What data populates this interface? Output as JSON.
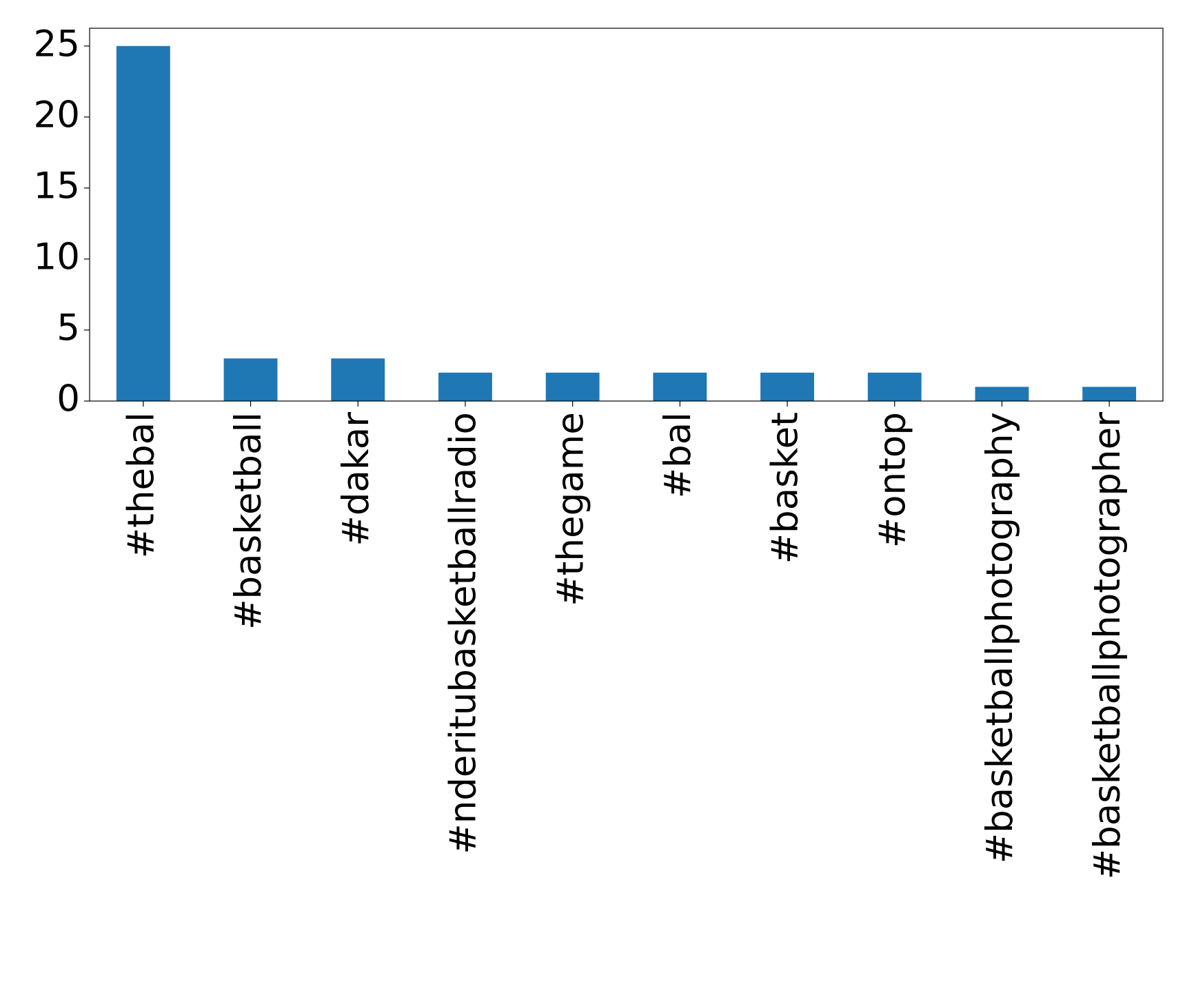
{
  "chart_data": {
    "type": "bar",
    "categories": [
      "#thebal",
      "#basketball",
      "#dakar",
      "#nderitubasketballradio",
      "#thegame",
      "#bal",
      "#basket",
      "#ontop",
      "#basketballphotography",
      "#basketballphotographer"
    ],
    "values": [
      25,
      3,
      3,
      2,
      2,
      2,
      2,
      2,
      1,
      1
    ],
    "color": "#1f77b4",
    "ylim": [
      0,
      26.25
    ],
    "yticks": [
      0,
      5,
      10,
      15,
      20,
      25
    ],
    "grid": false
  }
}
